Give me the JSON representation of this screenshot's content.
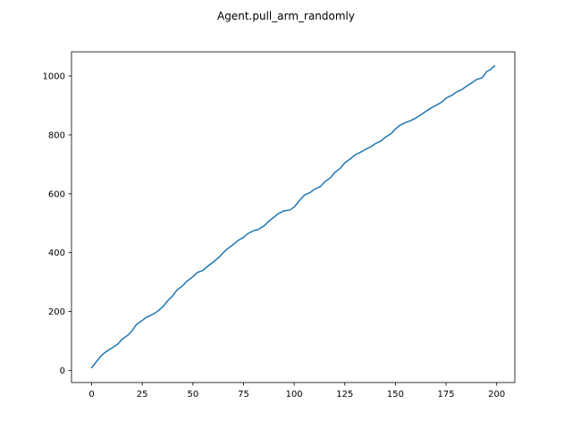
{
  "chart_data": {
    "type": "line",
    "title": "Agent.pull_arm_randomly",
    "xlabel": "",
    "ylabel": "",
    "xlim": [
      -9.95,
      208.95
    ],
    "ylim": [
      -41.2,
      1082.2
    ],
    "xticks": [
      0,
      25,
      50,
      75,
      100,
      125,
      150,
      175,
      200
    ],
    "yticks": [
      0,
      200,
      400,
      600,
      800,
      1000
    ],
    "grid": false,
    "legend": "none",
    "line_color": "#1f77b4",
    "series": [
      {
        "x": [
          0,
          3,
          5,
          7,
          10,
          13,
          15,
          18,
          20,
          22,
          25,
          27,
          30,
          32,
          35,
          38,
          40,
          42,
          45,
          47,
          50,
          52,
          55,
          57,
          60,
          63,
          65,
          67,
          70,
          72,
          75,
          77,
          80,
          82,
          85,
          88,
          90,
          92,
          95,
          98,
          100,
          103,
          105,
          108,
          110,
          113,
          115,
          118,
          120,
          123,
          125,
          128,
          130,
          133,
          135,
          138,
          140,
          143,
          145,
          148,
          150,
          152,
          155,
          158,
          160,
          163,
          165,
          168,
          170,
          173,
          175,
          178,
          180,
          183,
          185,
          188,
          190,
          193,
          195,
          197,
          199
        ],
        "y": [
          9,
          35,
          52,
          63,
          76,
          90,
          106,
          120,
          135,
          155,
          170,
          180,
          190,
          198,
          215,
          240,
          253,
          272,
          288,
          303,
          318,
          332,
          340,
          352,
          368,
          385,
          400,
          413,
          428,
          440,
          452,
          464,
          475,
          478,
          490,
          510,
          520,
          532,
          542,
          545,
          555,
          580,
          595,
          605,
          615,
          625,
          640,
          655,
          672,
          688,
          705,
          720,
          732,
          742,
          750,
          760,
          770,
          780,
          792,
          805,
          820,
          832,
          842,
          850,
          857,
          870,
          880,
          893,
          900,
          912,
          925,
          935,
          945,
          955,
          965,
          978,
          988,
          995,
          1015,
          1022,
          1035
        ]
      }
    ]
  }
}
